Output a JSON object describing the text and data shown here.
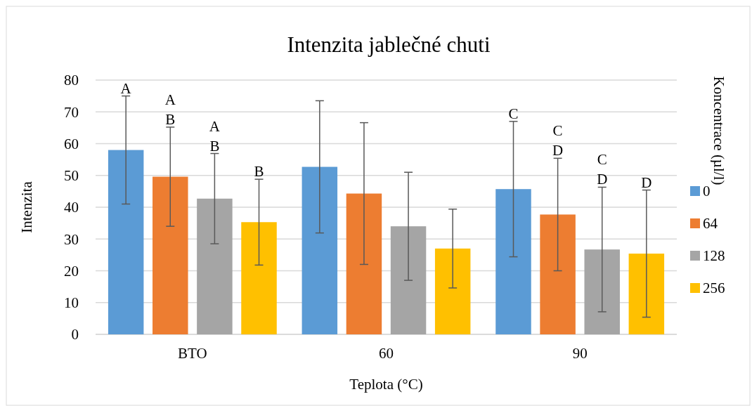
{
  "chart_data": {
    "type": "bar",
    "title": "Intenzita jablečné chuti",
    "xlabel": "Teplota (°C)",
    "ylabel": "Intenzita",
    "legend_title": "Koncentrace (µl/l)",
    "categories": [
      "BTO",
      "60",
      "90"
    ],
    "series": [
      {
        "name": "0",
        "color": "#5b9bd5",
        "values": [
          58,
          52.7,
          45.7
        ],
        "errors": [
          17,
          20.8,
          21.3
        ]
      },
      {
        "name": "64",
        "color": "#ed7d31",
        "values": [
          49.6,
          44.3,
          37.7
        ],
        "errors": [
          15.6,
          22.3,
          17.7
        ]
      },
      {
        "name": "128",
        "color": "#a5a5a5",
        "values": [
          42.7,
          34,
          26.7
        ],
        "errors": [
          14.2,
          17,
          19.6
        ]
      },
      {
        "name": "256",
        "color": "#ffc000",
        "values": [
          35.3,
          27,
          25.4
        ],
        "errors": [
          13.5,
          12.4,
          20
        ]
      }
    ],
    "annotations": [
      "A",
      "A",
      "B",
      "A",
      "B",
      "B",
      "C",
      "C",
      "D",
      "C",
      "D",
      "D"
    ],
    "ylim": [
      0,
      80
    ],
    "yticks": [
      0,
      10,
      20,
      30,
      40,
      50,
      60,
      70,
      80
    ],
    "grid": "y",
    "legend": "right"
  }
}
